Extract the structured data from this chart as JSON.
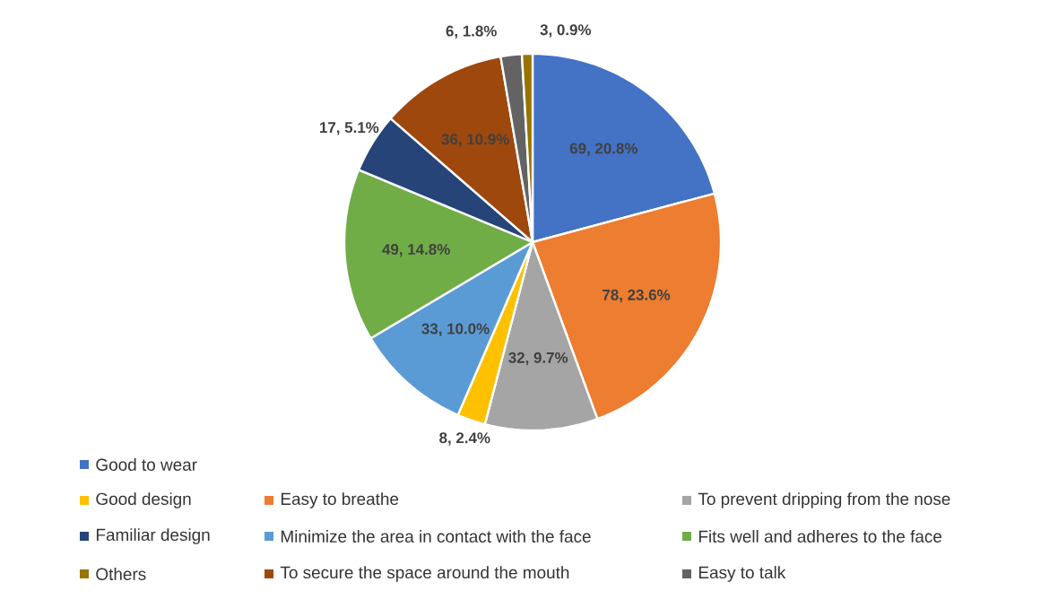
{
  "chart_data": {
    "type": "pie",
    "categories": [
      "Good to wear",
      "Easy to breathe",
      "To prevent dripping from the nose",
      "Good design",
      "Minimize the area in contact with the face",
      "Fits well and adheres to the face",
      "Familiar design",
      "To secure the space around the mouth",
      "Easy to talk",
      "Others"
    ],
    "values": [
      69,
      78,
      32,
      8,
      33,
      49,
      17,
      36,
      6,
      3
    ],
    "colors": [
      "#4472c4",
      "#ed7d31",
      "#a5a5a5",
      "#ffc000",
      "#5b9bd5",
      "#70ad47",
      "#264478",
      "#9e480e",
      "#636363",
      "#997300"
    ],
    "value_labels": [
      "69, 20.8%",
      "78, 23.6%",
      "32, 9.7%",
      "8, 2.4%",
      "33, 10.0%",
      "49, 14.8%",
      "17, 5.1%",
      "36, 10.9%",
      "6, 1.8%",
      "3, 0.9%"
    ],
    "legend": "bottom"
  }
}
